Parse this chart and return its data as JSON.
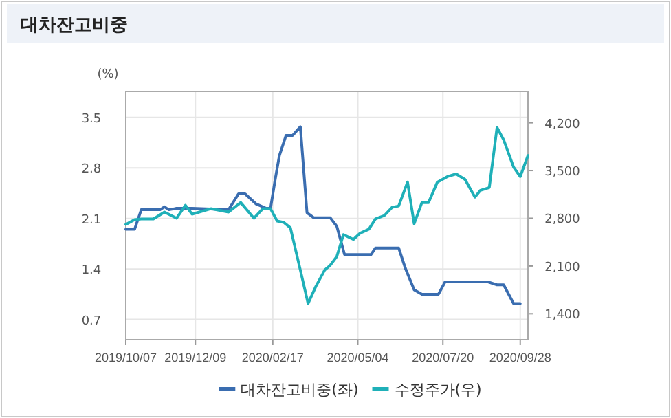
{
  "chart_data": {
    "type": "line",
    "title": "대차잔고비중",
    "ylabel": "(%)",
    "xlim": [
      "2019-10-07",
      "2020-10-05"
    ],
    "xticks": [
      {
        "value": "2019-10-07",
        "label": "2019/10/07"
      },
      {
        "value": "2019-12-09",
        "label": "2019/12/09"
      },
      {
        "value": "2020-02-17",
        "label": "2020/02/17"
      },
      {
        "value": "2020-05-04",
        "label": "2020/05/04"
      },
      {
        "value": "2020-07-20",
        "label": "2020/07/20"
      },
      {
        "value": "2020-09-28",
        "label": "2020/09/28"
      }
    ],
    "ylim": [
      0.42,
      3.86
    ],
    "yticks": [
      0.7,
      1.4,
      2.1,
      2.8,
      3.5
    ],
    "y2lim": [
      1020,
      4660
    ],
    "y2ticks": [
      {
        "value": 1400,
        "label": "1,400"
      },
      {
        "value": 2100,
        "label": "2,100"
      },
      {
        "value": 2800,
        "label": "2,800"
      },
      {
        "value": 3500,
        "label": "3,500"
      },
      {
        "value": 4200,
        "label": "4,200"
      }
    ],
    "grid": true,
    "legend": "bottom",
    "line_style": "solid",
    "series": [
      {
        "name": "대차잔고비중(좌)",
        "color": "#3a6db0",
        "x": [
          "2019-10-07",
          "2019-10-15",
          "2019-10-21",
          "2019-11-07",
          "2019-11-11",
          "2019-11-15",
          "2019-11-22",
          "2019-12-06",
          "2020-01-08",
          "2020-01-17",
          "2020-01-23",
          "2020-02-02",
          "2020-02-11",
          "2020-02-15",
          "2020-02-19",
          "2020-02-23",
          "2020-02-29",
          "2020-03-06",
          "2020-03-13",
          "2020-03-19",
          "2020-03-25",
          "2020-04-09",
          "2020-04-15",
          "2020-04-22",
          "2020-05-16",
          "2020-05-20",
          "2020-06-10",
          "2020-06-16",
          "2020-06-24",
          "2020-07-01",
          "2020-07-16",
          "2020-07-22",
          "2020-08-30",
          "2020-09-07",
          "2020-09-13",
          "2020-09-22",
          "2020-09-28"
        ],
        "values": [
          1.95,
          1.95,
          2.22,
          2.22,
          2.26,
          2.22,
          2.24,
          2.24,
          2.22,
          2.44,
          2.44,
          2.3,
          2.24,
          2.24,
          2.62,
          2.97,
          3.25,
          3.25,
          3.37,
          2.18,
          2.11,
          2.11,
          1.99,
          1.6,
          1.6,
          1.69,
          1.69,
          1.41,
          1.11,
          1.05,
          1.05,
          1.22,
          1.22,
          1.18,
          1.18,
          0.92,
          0.92
        ]
      },
      {
        "name": "수정주가(우)",
        "color": "#1fb0b8",
        "axis": "y2",
        "x": [
          "2019-10-07",
          "2019-10-15",
          "2019-10-21",
          "2019-11-01",
          "2019-11-11",
          "2019-11-22",
          "2019-11-30",
          "2019-12-06",
          "2019-12-23",
          "2020-01-08",
          "2020-01-19",
          "2020-01-31",
          "2020-02-08",
          "2020-02-15",
          "2020-02-21",
          "2020-02-27",
          "2020-03-04",
          "2020-03-13",
          "2020-03-20",
          "2020-03-27",
          "2020-04-04",
          "2020-04-09",
          "2020-04-15",
          "2020-04-21",
          "2020-04-30",
          "2020-05-06",
          "2020-05-14",
          "2020-05-20",
          "2020-05-28",
          "2020-06-04",
          "2020-06-10",
          "2020-06-18",
          "2020-06-24",
          "2020-07-01",
          "2020-07-07",
          "2020-07-15",
          "2020-07-24",
          "2020-08-01",
          "2020-08-09",
          "2020-08-18",
          "2020-08-23",
          "2020-08-31",
          "2020-09-07",
          "2020-09-13",
          "2020-09-22",
          "2020-09-28",
          "2020-10-05"
        ],
        "values": [
          2710,
          2780,
          2790,
          2790,
          2890,
          2800,
          2990,
          2860,
          2940,
          2890,
          3030,
          2800,
          2940,
          2940,
          2760,
          2740,
          2660,
          2040,
          1550,
          1800,
          2040,
          2110,
          2240,
          2560,
          2490,
          2580,
          2640,
          2790,
          2840,
          2960,
          2980,
          3330,
          2720,
          3030,
          3030,
          3330,
          3410,
          3450,
          3370,
          3110,
          3210,
          3250,
          4130,
          3950,
          3550,
          3410,
          3720
        ]
      }
    ]
  }
}
